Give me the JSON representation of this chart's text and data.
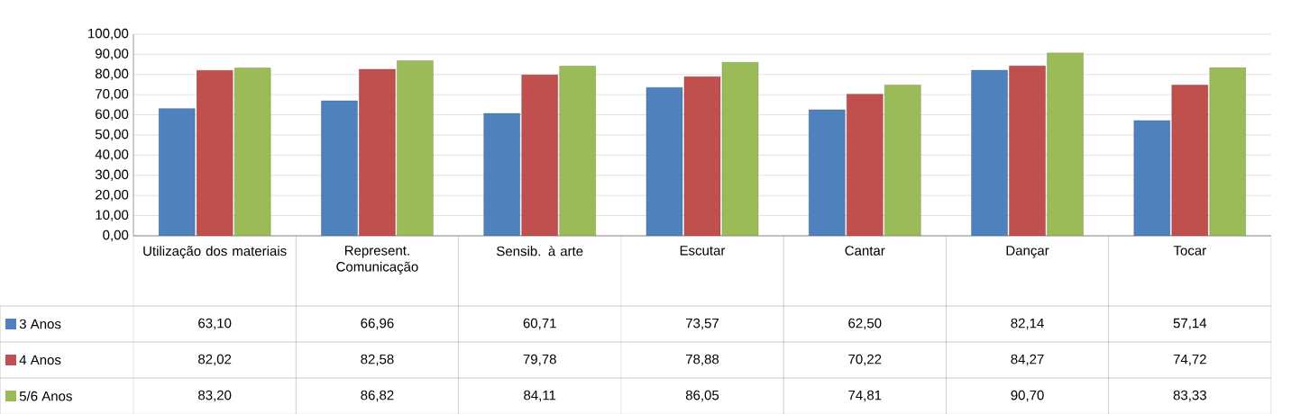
{
  "chart_data": {
    "type": "bar",
    "categories": [
      "Utilização dos materiais",
      "Represent. Comunicação",
      "Sensib. à arte",
      "Escutar",
      "Cantar",
      "Dançar",
      "Tocar"
    ],
    "series": [
      {
        "name": "3 Anos",
        "color": "#4f81bd",
        "values": [
          63.1,
          66.96,
          60.71,
          73.57,
          62.5,
          82.14,
          57.14
        ],
        "value_labels": [
          "63,10",
          "66,96",
          "60,71",
          "73,57",
          "62,50",
          "82,14",
          "57,14"
        ]
      },
      {
        "name": "4 Anos",
        "color": "#c0504d",
        "values": [
          82.02,
          82.58,
          79.78,
          78.88,
          70.22,
          84.27,
          74.72
        ],
        "value_labels": [
          "82,02",
          "82,58",
          "79,78",
          "78,88",
          "70,22",
          "84,27",
          "74,72"
        ]
      },
      {
        "name": "5/6 Anos",
        "color": "#9bbb59",
        "values": [
          83.2,
          86.82,
          84.11,
          86.05,
          74.81,
          90.7,
          83.33
        ],
        "value_labels": [
          "83,20",
          "86,82",
          "84,11",
          "86,05",
          "74,81",
          "90,70",
          "83,33"
        ]
      }
    ],
    "ylim": [
      0,
      100
    ],
    "yticks": [
      {
        "value": 0,
        "label": "0,00"
      },
      {
        "value": 10,
        "label": "10,00"
      },
      {
        "value": 20,
        "label": "20,00"
      },
      {
        "value": 30,
        "label": "30,00"
      },
      {
        "value": 40,
        "label": "40,00"
      },
      {
        "value": 50,
        "label": "50,00"
      },
      {
        "value": 60,
        "label": "60,00"
      },
      {
        "value": 70,
        "label": "70,00"
      },
      {
        "value": 80,
        "label": "80,00"
      },
      {
        "value": 90,
        "label": "90,00"
      },
      {
        "value": 100,
        "label": "100,00"
      }
    ],
    "grid": "y",
    "legend": "bottom"
  }
}
